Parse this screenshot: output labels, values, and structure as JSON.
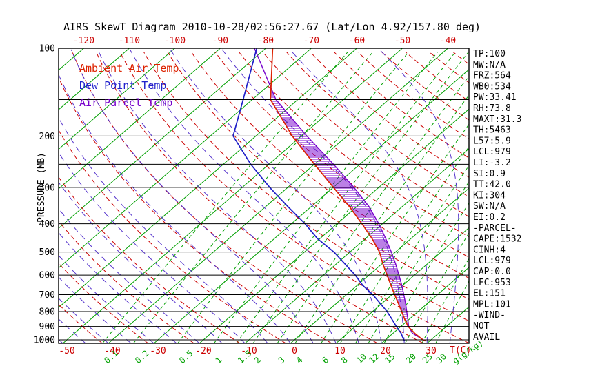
{
  "title": "AIRS SkewT Diagram 2010-10-28/02:56:27.67 (Lat/Lon 4.92/157.80 deg)",
  "legend": [
    {
      "label": "Ambient Air Temp",
      "color": "#dd2200"
    },
    {
      "label": "Dew Point Temp",
      "color": "#2222cc"
    },
    {
      "label": "Air Parcel Temp",
      "color": "#7700cc"
    }
  ],
  "axes": {
    "y_label": "PRESSURE (MB)",
    "pressure_ticks": [
      100,
      200,
      300,
      400,
      500,
      600,
      700,
      800,
      900,
      1000
    ],
    "pressure_lines": [
      100,
      150,
      200,
      250,
      300,
      400,
      500,
      600,
      700,
      800,
      900,
      1000
    ],
    "top_temp_ticks": [
      -120,
      -110,
      -100,
      -90,
      -80,
      -70,
      -60,
      -50,
      -40
    ],
    "bottom_temp_ticks": [
      -50,
      -40,
      -30,
      -20,
      -10,
      0,
      10,
      20,
      30
    ],
    "x_label": "T(C)",
    "mixing_label": "g(g/kg)",
    "mixing_ratio_ticks": [
      0.1,
      0.2,
      0.5,
      1,
      1.5,
      2,
      3,
      4,
      6,
      8,
      10,
      12,
      15,
      20,
      25,
      30
    ]
  },
  "stats": [
    "TP:100",
    "MW:N/A",
    "FRZ:564",
    "WB0:534",
    "PW:33.41",
    "RH:73.8",
    "MAXT:31.3",
    "TH:5463",
    "L57:5.9",
    "LCL:979",
    "LI:-3.2",
    "SI:0.9",
    "TT:42.0",
    "KI:304",
    "SW:N/A",
    "EI:0.2",
    "-PARCEL-",
    "CAPE:1532",
    "CINH:4",
    "LCL:979",
    "CAP:0.0",
    "LFC:953",
    "EL:151",
    "MPL:101",
    "-WIND-",
    "NOT",
    "AVAIL"
  ],
  "colors": {
    "isotherm": "#00a000",
    "mixing_ratio": "#00a000",
    "dry_adiabat": "#cc0000",
    "moist_adiabat": "#5533cc",
    "pressure_line": "#000000",
    "ambient": "#dd2200",
    "dewpoint": "#1f1fc8",
    "parcel": "#7700cc",
    "axis_text_temp": "#cc0000",
    "axis_text_mixing": "#00a000",
    "text": "#000000"
  },
  "chart_data": {
    "type": "line",
    "title": "AIRS SkewT Diagram 2010-10-28/02:56:27.67 (Lat/Lon 4.92/157.80 deg)",
    "x_axis": {
      "label": "T(C)",
      "surface_ticks": [
        -50,
        -40,
        -30,
        -20,
        -10,
        0,
        10,
        20,
        30
      ],
      "top_ticks": [
        -120,
        -110,
        -100,
        -90,
        -80,
        -70,
        -60,
        -50,
        -40
      ],
      "skewed": true
    },
    "y_axis": {
      "label": "PRESSURE (MB)",
      "scale": "log",
      "range_mb": [
        100,
        1028
      ],
      "ticks": [
        100,
        200,
        300,
        400,
        500,
        600,
        700,
        800,
        900,
        1000
      ]
    },
    "background": {
      "isotherms_c": {
        "min": -130,
        "max": 40,
        "step": 10
      },
      "dry_adiabats_theta_k": {
        "min": 220,
        "max": 450,
        "step": 10
      },
      "moist_adiabats_start_c": {
        "min": -60,
        "max": 40,
        "step": 5
      },
      "mixing_ratio_lines_g_kg": [
        0.1,
        0.2,
        0.5,
        1,
        1.5,
        2,
        3,
        4,
        6,
        8,
        10,
        12,
        15,
        20,
        25,
        30
      ]
    },
    "series": [
      {
        "name": "Ambient Air Temp",
        "color": "#dd2200",
        "pressure_mb": [
          1008,
          1000,
          975,
          950,
          925,
          900,
          850,
          800,
          750,
          700,
          650,
          600,
          550,
          500,
          450,
          400,
          350,
          300,
          250,
          200,
          150,
          100
        ],
        "temp_c": [
          29.0,
          28.2,
          26.5,
          24.8,
          23.2,
          21.6,
          19.0,
          16.4,
          13.6,
          10.6,
          7.4,
          4.0,
          0.3,
          -3.5,
          -8.5,
          -14.5,
          -21.5,
          -30.0,
          -40.0,
          -52.0,
          -66.0,
          -78.5
        ]
      },
      {
        "name": "Dew Point Temp",
        "color": "#1f1fc8",
        "pressure_mb": [
          1008,
          1000,
          975,
          950,
          925,
          900,
          850,
          800,
          750,
          700,
          650,
          600,
          550,
          500,
          450,
          400,
          350,
          300,
          250,
          200,
          150,
          100
        ],
        "temp_c": [
          24.5,
          24.0,
          22.9,
          21.8,
          20.4,
          19.0,
          16.2,
          13.2,
          9.6,
          5.8,
          1.2,
          -3.0,
          -8.0,
          -13.5,
          -20.5,
          -27.0,
          -35.0,
          -44.0,
          -54.0,
          -65.0,
          -72.0,
          -82.0
        ]
      },
      {
        "name": "Air Parcel Temp",
        "color": "#7700cc",
        "pressure_mb": [
          1008,
          1000,
          950,
          900,
          850,
          800,
          750,
          700,
          650,
          600,
          550,
          500,
          450,
          400,
          350,
          300,
          250,
          200,
          150,
          100
        ],
        "temp_c": [
          29.0,
          28.3,
          24.3,
          21.7,
          19.7,
          17.5,
          15.2,
          12.6,
          9.8,
          6.6,
          3.1,
          -0.9,
          -5.5,
          -10.8,
          -17.2,
          -25.5,
          -35.8,
          -48.8,
          -64.8,
          -82.5
        ]
      }
    ],
    "cape_hatch": {
      "between": [
        "Air Parcel Temp",
        "Ambient Air Temp"
      ],
      "pressure_range_mb": [
        151,
        953
      ]
    }
  }
}
